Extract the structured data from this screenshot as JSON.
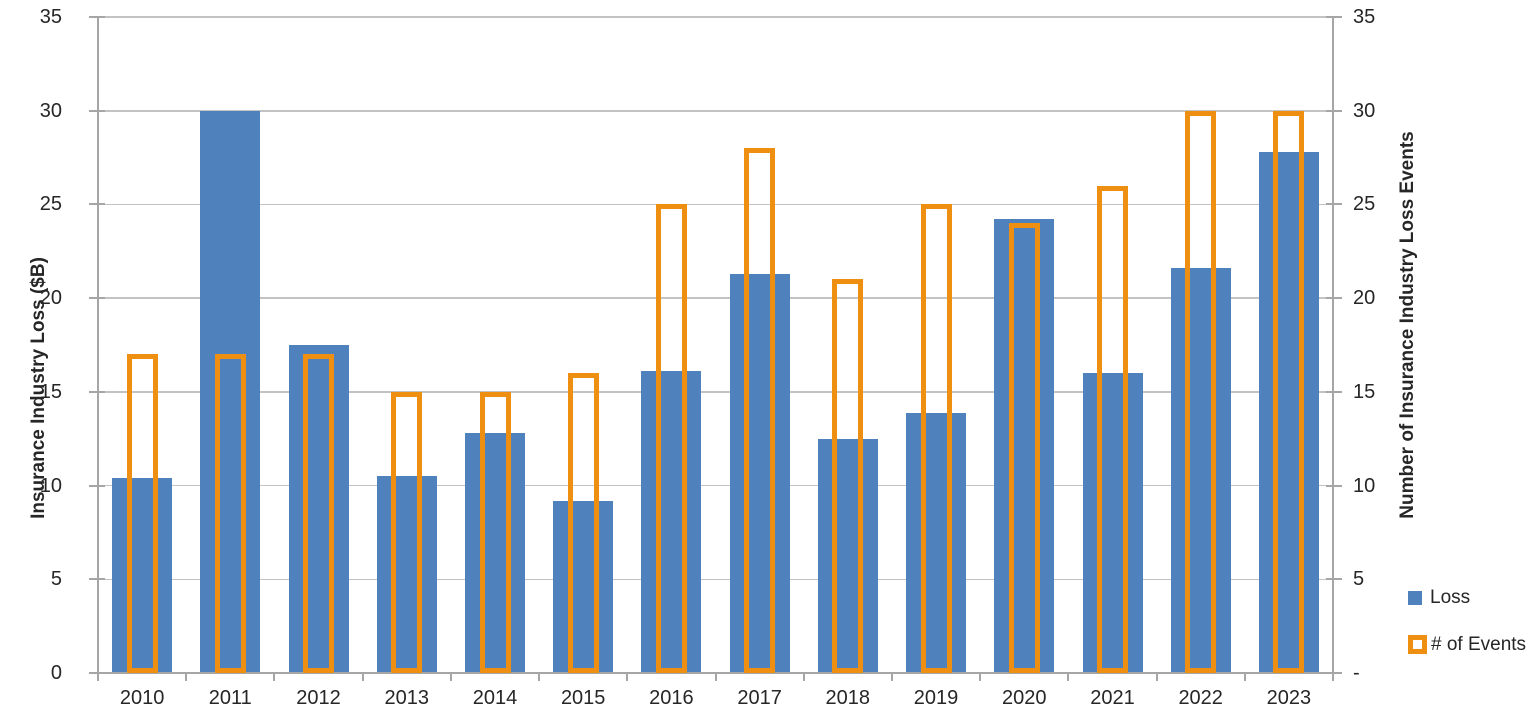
{
  "chart_data": {
    "type": "bar",
    "title": "",
    "categories": [
      "2010",
      "2011",
      "2012",
      "2013",
      "2014",
      "2015",
      "2016",
      "2017",
      "2018",
      "2019",
      "2020",
      "2021",
      "2022",
      "2023"
    ],
    "series": [
      {
        "name": "Loss",
        "axis": "left",
        "style": "solid",
        "color": "#4F81BD",
        "values": [
          10.4,
          30.0,
          17.5,
          10.5,
          12.8,
          9.2,
          16.1,
          21.3,
          12.5,
          13.9,
          24.2,
          16.0,
          21.6,
          27.8
        ]
      },
      {
        "name": "# of Events",
        "axis": "right",
        "style": "outline",
        "color": "#EE8F11",
        "values": [
          17,
          17,
          17,
          15,
          15,
          16,
          25,
          28,
          21,
          25,
          24,
          26,
          30,
          30
        ]
      }
    ],
    "left_axis": {
      "title": "Insurance Industry Loss ($B)",
      "min": 0,
      "max": 35,
      "tick_step": 5,
      "tick_labels_top_to_bottom": [
        "35",
        "30",
        "25",
        "20",
        "15",
        "10",
        "5",
        "0"
      ]
    },
    "right_axis": {
      "title": "Number of Insurance Industry Loss Events",
      "min": 0,
      "max": 35,
      "tick_step": 5,
      "tick_labels_top_to_bottom": [
        "35",
        "30",
        "25",
        "20",
        "15",
        "10",
        "5",
        "-"
      ]
    },
    "grid": true,
    "legend": {
      "position": "right-bottom",
      "items": [
        {
          "label": "Loss"
        },
        {
          "label": "# of Events"
        }
      ]
    }
  }
}
